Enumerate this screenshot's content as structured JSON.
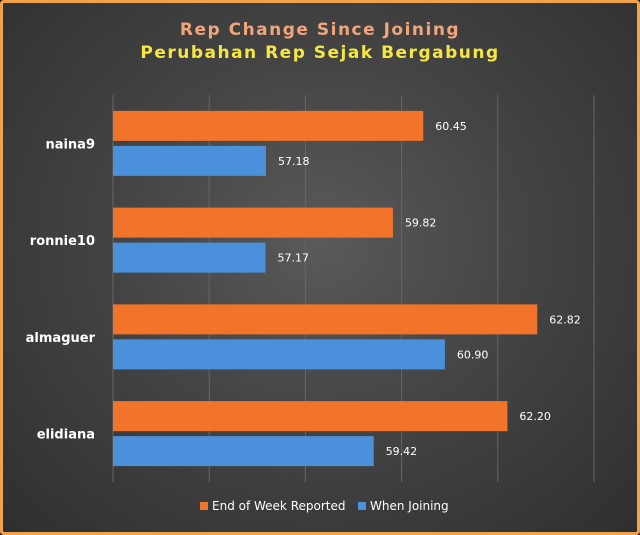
{
  "chart_data": {
    "type": "bar",
    "orientation": "horizontal",
    "title": "Rep Change Since Joining",
    "subtitle": "Perubahan Rep Sejak Bergabung",
    "categories": [
      "naina9",
      "ronnie10",
      "almaguer",
      "elidiana"
    ],
    "series": [
      {
        "name": "End of Week Reported",
        "color": "#f2742b",
        "values": [
          60.45,
          59.82,
          62.82,
          62.2
        ]
      },
      {
        "name": "When Joining",
        "color": "#4b90db",
        "values": [
          57.18,
          57.17,
          60.9,
          59.42
        ]
      }
    ],
    "value_labels": {
      "End of Week Reported": [
        "60.45",
        "59.82",
        "62.82",
        "62.20"
      ],
      "When Joining": [
        "57.18",
        "57.17",
        "60.90",
        "59.42"
      ]
    },
    "xlim": [
      54,
      64
    ],
    "grid": true,
    "legend": "bottom",
    "colors": {
      "title": "#f0a67a",
      "subtitle": "#f5e642",
      "text": "#ffffff",
      "grid": "#666666"
    }
  }
}
